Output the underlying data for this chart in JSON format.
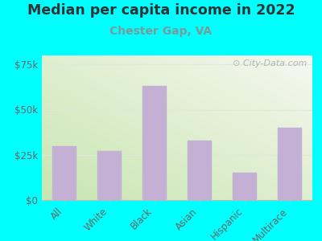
{
  "title": "Median per capita income in 2022",
  "subtitle": "Chester Gap, VA",
  "categories": [
    "All",
    "White",
    "Black",
    "Asian",
    "Hispanic",
    "Multirace"
  ],
  "values": [
    30000,
    27000,
    63000,
    33000,
    15000,
    40000
  ],
  "bar_color": "#c4b0d5",
  "bar_edge_color": "#c4b0d5",
  "ylim": [
    0,
    80000
  ],
  "yticks": [
    0,
    25000,
    50000,
    75000
  ],
  "ytick_labels": [
    "$0",
    "$25k",
    "$50k",
    "$75k"
  ],
  "bg_outer": "#00FFFF",
  "title_color": "#333333",
  "subtitle_color": "#7a9a9a",
  "tick_color": "#666666",
  "watermark_text": "⊙ City-Data.com",
  "title_fontsize": 12.5,
  "subtitle_fontsize": 10,
  "tick_fontsize": 8.5,
  "plot_bg_colors": [
    "#c8e6b0",
    "#f5f8f0"
  ],
  "grid_color": "#e0e8d8",
  "spine_color": "#bbbbbb"
}
